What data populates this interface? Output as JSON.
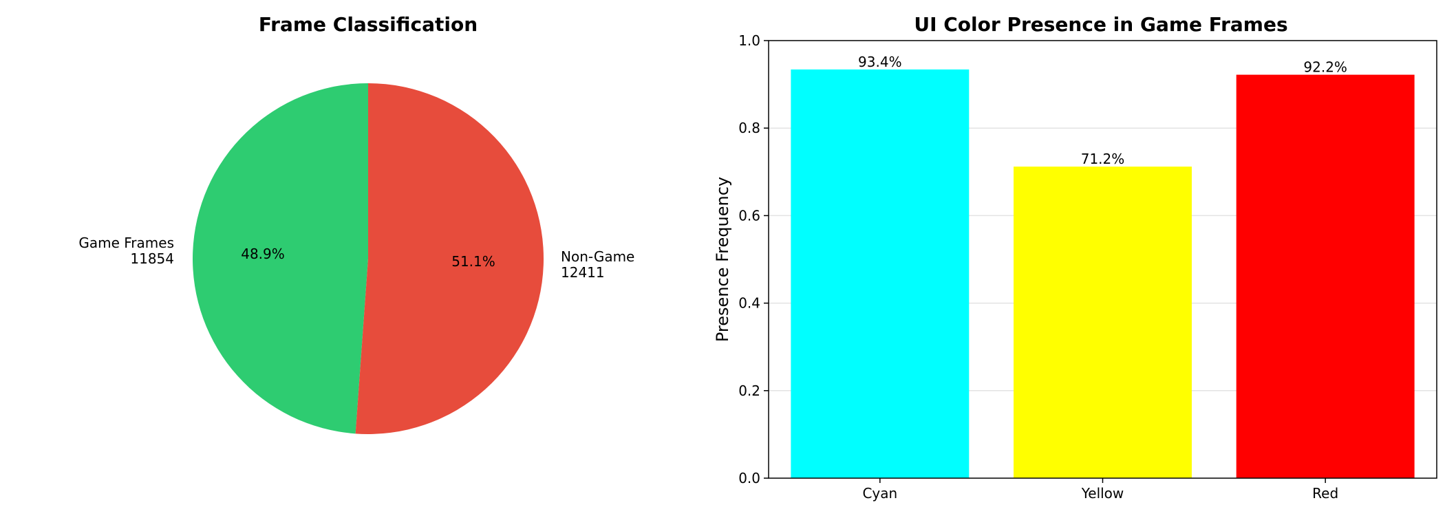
{
  "chart_data": [
    {
      "type": "pie",
      "title": "Frame Classification",
      "slices": [
        {
          "label": "Game Frames",
          "value": 11854,
          "value_text": "11854",
          "pct": "48.9%",
          "color": "#2ecc71"
        },
        {
          "label": "Non-Game",
          "value": 12411,
          "value_text": "12411",
          "pct": "51.1%",
          "color": "#e74c3c"
        }
      ]
    },
    {
      "type": "bar",
      "title": "UI Color Presence in Game Frames",
      "xlabel": "",
      "ylabel": "Presence Frequency",
      "ylim": [
        0,
        1.0
      ],
      "yticks": [
        "0.0",
        "0.2",
        "0.4",
        "0.6",
        "0.8",
        "1.0"
      ],
      "grid": "y",
      "categories": [
        "Cyan",
        "Yellow",
        "Red"
      ],
      "values": [
        0.934,
        0.712,
        0.922
      ],
      "value_labels": [
        "93.4%",
        "71.2%",
        "92.2%"
      ],
      "colors": [
        "#00ffff",
        "#ffff00",
        "#ff0000"
      ]
    }
  ]
}
